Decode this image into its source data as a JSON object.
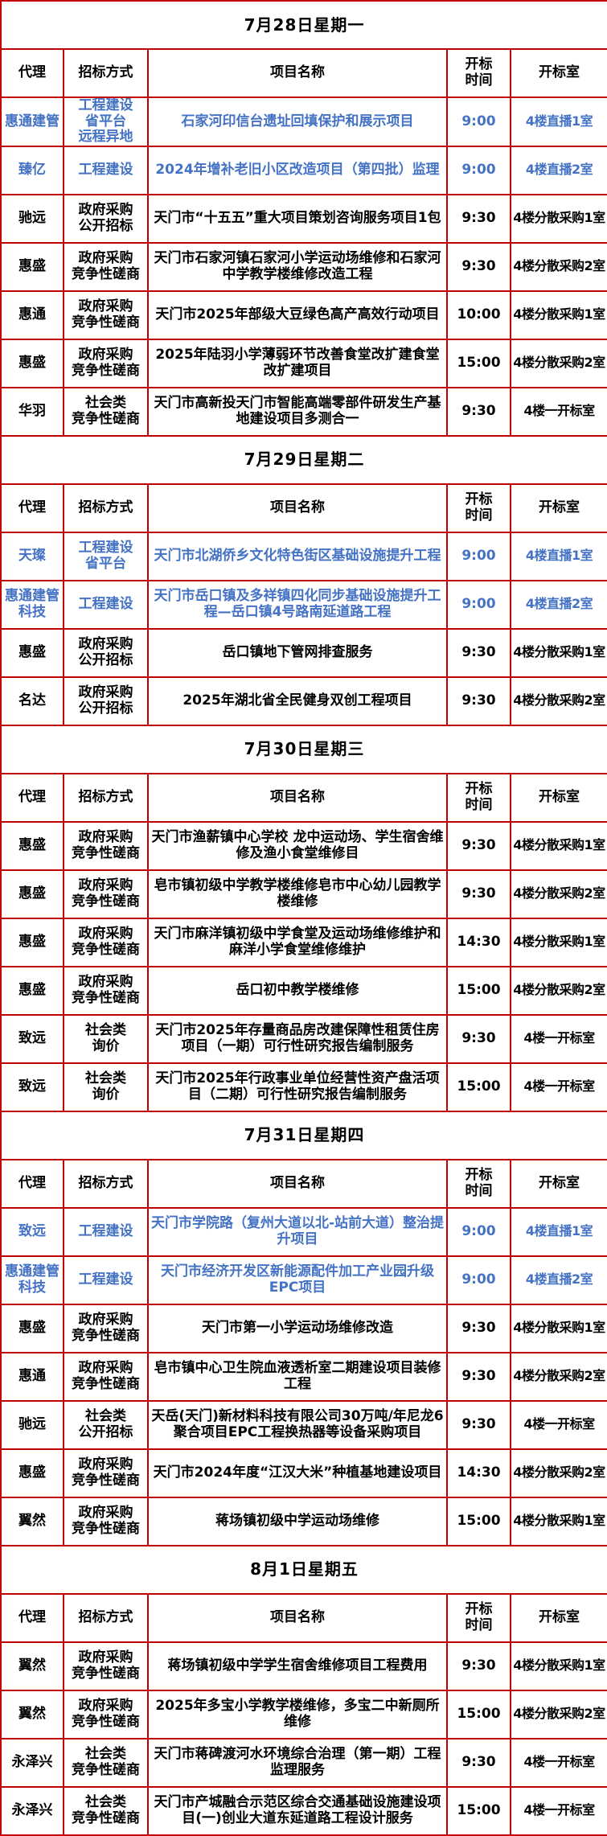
{
  "colors": {
    "border": "#c00000",
    "highlight_blue": "#4472c4",
    "text": "#000000",
    "comment_mark_green": "#0a7a0a",
    "background": "#ffffff"
  },
  "header": {
    "agent": "代理",
    "method": "招标方式",
    "project": "项目名称",
    "time": "开标\n时间",
    "room": "开标室"
  },
  "sections": [
    {
      "date": "7月28日星期一",
      "rows": [
        {
          "agent": "惠通建管",
          "method": "工程建设\n省平台\n远程异地",
          "project": "石家河印信台遗址回填保护和展示项目",
          "time": "9:00",
          "room": "4楼直播1室",
          "blue": true,
          "marks": []
        },
        {
          "agent": "臻亿",
          "method": "工程建设",
          "project": "2024年增补老旧小区改造项目（第四批）监理",
          "time": "9:00",
          "room": "4楼直播2室",
          "blue": true,
          "marks": [
            "agent",
            "project"
          ]
        },
        {
          "agent": "驰远",
          "method": "政府采购\n公开招标",
          "project": "天门市“十五五”重大项目策划咨询服务项目1包",
          "time": "9:30",
          "room": "4楼分散采购1室",
          "blue": false,
          "marks": []
        },
        {
          "agent": "惠盛",
          "method": "政府采购\n竞争性磋商",
          "project": "天门市石家河镇石家河小学运动场维修和石家河中学教学楼维修改造工程",
          "time": "9:30",
          "room": "4楼分散采购2室",
          "blue": false,
          "marks": [
            "project"
          ]
        },
        {
          "agent": "惠通",
          "method": "政府采购\n竞争性磋商",
          "project": "天门市2025年部级大豆绿色高产高效行动项目",
          "time": "10:00",
          "room": "4楼分散采购1室",
          "blue": false,
          "marks": []
        },
        {
          "agent": "惠盛",
          "method": "政府采购\n竞争性磋商",
          "project": "2025年陆羽小学薄弱环节改善食堂改扩建食堂改扩建项目",
          "time": "15:00",
          "room": "4楼分散采购2室",
          "blue": false,
          "marks": []
        },
        {
          "agent": "华羽",
          "method": "社会类\n竞争性磋商",
          "project": "天门市高新投天门市智能高端零部件研发生产基地建设项目多测合一",
          "time": "9:30",
          "room": "4楼一开标室",
          "blue": false,
          "marks": [
            "agent",
            "method",
            "project"
          ]
        }
      ]
    },
    {
      "date": "7月29日星期二",
      "rows": [
        {
          "agent": "天璨",
          "method": "工程建设\n省平台",
          "project": "天门市北湖侨乡文化特色街区基础设施提升工程",
          "time": "9:00",
          "room": "4楼直播1室",
          "blue": true,
          "marks": [
            "method",
            "project"
          ]
        },
        {
          "agent": "惠通建管科技",
          "method": "工程建设",
          "project": "天门市岳口镇及多祥镇四化同步基础设施提升工程—岳口镇4号路南延道路工程",
          "time": "9:00",
          "room": "4楼直播2室",
          "blue": true,
          "marks": [
            "agent"
          ]
        },
        {
          "agent": "惠盛",
          "method": "政府采购\n公开招标",
          "project": "岳口镇地下管网排查服务",
          "time": "9:30",
          "room": "4楼分散采购1室",
          "blue": false,
          "marks": [
            "project"
          ]
        },
        {
          "agent": "名达",
          "method": "政府采购\n公开招标",
          "project": "2025年湖北省全民健身双创工程项目",
          "time": "9:30",
          "room": "4楼分散采购2室",
          "blue": false,
          "marks": []
        }
      ]
    },
    {
      "date": "7月30日星期三",
      "rows": [
        {
          "agent": "惠盛",
          "method": "政府采购\n竞争性磋商",
          "project": "天门市渔薪镇中心学校 龙中运动场、学生宿舍维修及渔小食堂维修目",
          "time": "9:30",
          "room": "4楼分散采购1室",
          "blue": false,
          "marks": []
        },
        {
          "agent": "惠盛",
          "method": "政府采购\n竞争性磋商",
          "project": "皂市镇初级中学教学楼维修皂市中心幼儿园教学楼维修",
          "time": "9:30",
          "room": "4楼分散采购2室",
          "blue": false,
          "marks": []
        },
        {
          "agent": "惠盛",
          "method": "政府采购\n竞争性磋商",
          "project": "天门市麻洋镇初级中学食堂及运动场维修维护和麻洋小学食堂维修维护",
          "time": "14:30",
          "room": "4楼分散采购1室",
          "blue": false,
          "marks": []
        },
        {
          "agent": "惠盛",
          "method": "政府采购\n竞争性磋商",
          "project": "岳口初中教学楼维修",
          "time": "15:00",
          "room": "4楼分散采购2室",
          "blue": false,
          "marks": []
        },
        {
          "agent": "致远",
          "method": "社会类\n询价",
          "project": "天门市2025年存量商品房改建保障性租赁住房项目（一期）可行性研究报告编制服务",
          "time": "9:30",
          "room": "4楼一开标室",
          "blue": false,
          "marks": [
            "method"
          ]
        },
        {
          "agent": "致远",
          "method": "社会类\n询价",
          "project": "天门市2025年行政事业单位经营性资产盘活项目（二期）可行性研究报告编制服务",
          "time": "15:00",
          "room": "4楼一开标室",
          "blue": false,
          "marks": [
            "method"
          ]
        }
      ]
    },
    {
      "date": "7月31日星期四",
      "rows": [
        {
          "agent": "致远",
          "method": "工程建设",
          "project": "天门市学院路（复州大道以北-站前大道）整治提升项目",
          "time": "9:00",
          "room": "4楼直播1室",
          "blue": true,
          "marks": []
        },
        {
          "agent": "惠通建管科技",
          "method": "工程建设",
          "project": "天门市经济开发区新能源配件加工产业园升级EPC项目",
          "time": "9:00",
          "room": "4楼直播2室",
          "blue": true,
          "marks": [
            "agent"
          ]
        },
        {
          "agent": "惠盛",
          "method": "政府采购\n竞争性磋商",
          "project": "天门市第一小学运动场维修改造",
          "time": "9:30",
          "room": "4楼分散采购1室",
          "blue": false,
          "marks": []
        },
        {
          "agent": "惠通",
          "method": "政府采购\n竞争性磋商",
          "project": "皂市镇中心卫生院血液透析室二期建设项目装修工程",
          "time": "9:30",
          "room": "4楼分散采购2室",
          "blue": false,
          "marks": [
            "agent"
          ]
        },
        {
          "agent": "驰远",
          "method": "社会类\n公开招标",
          "project": "天岳(天门)新材料科技有限公司30万吨/年尼龙6聚合项目EPC工程换热器等设备采购项目",
          "time": "9:30",
          "room": "4楼一开标室",
          "blue": false,
          "marks": [
            "agent",
            "method",
            "project"
          ]
        },
        {
          "agent": "惠盛",
          "method": "政府采购\n竞争性磋商",
          "project": "天门市2024年度“江汉大米”种植基地建设项目",
          "time": "14:30",
          "room": "4楼分散采购2室",
          "blue": false,
          "marks": [
            "project"
          ]
        },
        {
          "agent": "翼然",
          "method": "政府采购\n竞争性磋商",
          "project": "蒋场镇初级中学运动场维修",
          "time": "15:00",
          "room": "4楼分散采购1室",
          "blue": false,
          "marks": []
        }
      ]
    },
    {
      "date": "8月1日星期五",
      "rows": [
        {
          "agent": "翼然",
          "method": "政府采购\n竞争性磋商",
          "project": "蒋场镇初级中学学生宿舍维修项目工程费用",
          "time": "9:30",
          "room": "4楼分散采购1室",
          "blue": false,
          "marks": [
            "agent",
            "project"
          ]
        },
        {
          "agent": "翼然",
          "method": "政府采购\n竞争性磋商",
          "project": "2025年多宝小学教学楼维修，多宝二中新厕所维修",
          "time": "15:00",
          "room": "4楼分散采购2室",
          "blue": false,
          "marks": [
            "agent",
            "project"
          ]
        },
        {
          "agent": "永泽兴",
          "method": "社会类\n竞争性磋商",
          "project": "天门市蒋碑渡河水环境综合治理（第一期）工程监理服务",
          "time": "9:30",
          "room": "4楼一开标室",
          "blue": false,
          "marks": [
            "method"
          ]
        },
        {
          "agent": "永泽兴",
          "method": "社会类\n竞争性磋商",
          "project": "天门市产城融合示范区综合交通基础设施建设项目(一)创业大道东延道路工程设计服务",
          "time": "15:00",
          "room": "4楼一开标室",
          "blue": false,
          "marks": [
            "method"
          ]
        }
      ]
    }
  ]
}
